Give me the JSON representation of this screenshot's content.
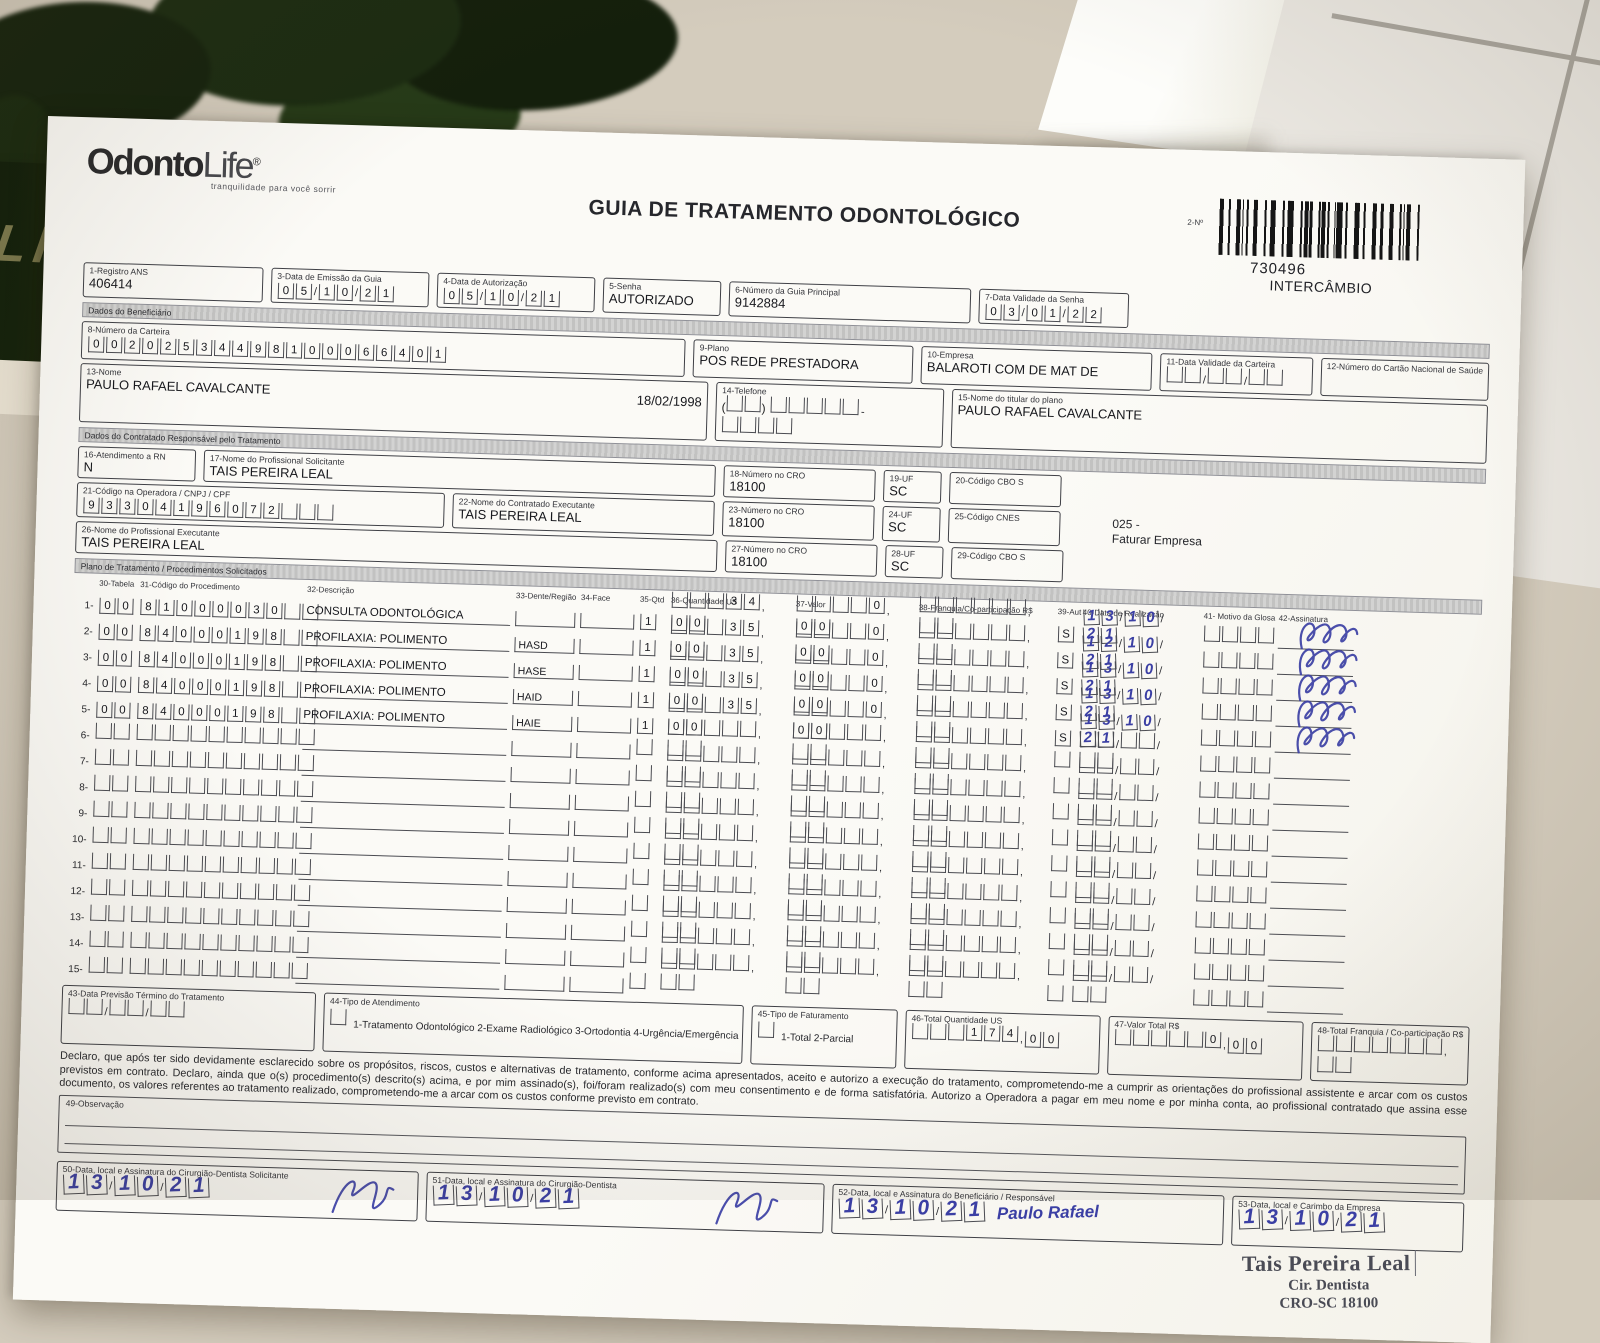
{
  "scene": {
    "life_text": "LIFE"
  },
  "header": {
    "brand_part1": "Odonto",
    "brand_part2": "Life",
    "brand_reg": "®",
    "tagline": "tranquilidade para você sorrir",
    "title": "GUIA DE TRATAMENTO ODONTOLÓGICO",
    "barcode_label": "2-Nº",
    "barcode_number": "730496",
    "barcode_type": "INTERCÂMBIO"
  },
  "top": {
    "registro": {
      "label": "1-Registro ANS",
      "value": "406414"
    },
    "emissao": {
      "label": "3-Data de Emissão da Guia",
      "value": [
        "05",
        "10",
        "21"
      ]
    },
    "autorizacao": {
      "label": "4-Data de Autorização",
      "value": [
        "05",
        "10",
        "21"
      ]
    },
    "senha": {
      "label": "5-Senha",
      "value": "AUTORIZADO"
    },
    "guia_principal": {
      "label": "6-Número da Guia Principal",
      "value": "9142884"
    },
    "validade_senha": {
      "label": "7-Data Validade da Senha",
      "value": [
        "03",
        "01",
        "22"
      ]
    }
  },
  "sections": {
    "beneficiario": "Dados do Beneficiário",
    "contratado": "Dados do Contratado Responsável pelo Tratamento",
    "plano_tratamento": "Plano de Tratamento / Procedimentos Solicitados"
  },
  "beneficiario": {
    "carteira": {
      "label": "8-Número da Carteira",
      "value": "00202534498100066401"
    },
    "plano": {
      "label": "9-Plano",
      "value": "POS REDE PRESTADORA"
    },
    "empresa": {
      "label": "10-Empresa",
      "value": "BALAROTI COM DE MAT DE"
    },
    "validade_carteira": {
      "label": "11-Data Validade da Carteira",
      "value": [
        "",
        "",
        ""
      ]
    },
    "cartao_saude": {
      "label": "12-Número do Cartão Nacional de Saúde",
      "value": ""
    },
    "nome": {
      "label": "13-Nome",
      "value": "PAULO RAFAEL CAVALCANTE",
      "data_nascimento": "18/02/1998"
    },
    "telefone": {
      "label": "14-Telefone",
      "ddd": "",
      "numero": [
        "",
        ""
      ]
    },
    "titular": {
      "label": "15-Nome do titular do plano",
      "value": "PAULO RAFAEL CAVALCANTE"
    }
  },
  "contratado": {
    "atendimento_rn": {
      "label": "16-Atendimento a RN",
      "value": "N"
    },
    "solicitante": {
      "label": "17-Nome do Profissional Solicitante",
      "value": "TAIS PEREIRA LEAL"
    },
    "cro_solicitante": {
      "label": "18-Número no CRO",
      "value": "18100"
    },
    "uf_solicitante": {
      "label": "19-UF",
      "value": "SC"
    },
    "cbo_solicitante": {
      "label": "20-Código CBO S",
      "value": ""
    },
    "codigo_operadora": {
      "label": "21-Código na Operadora / CNPJ / CPF",
      "value": "93304196072"
    },
    "contratado_executante": {
      "label": "22-Nome do Contratado Executante",
      "value": "TAIS PEREIRA LEAL"
    },
    "cro_executante": {
      "label": "23-Número no CRO",
      "value": "18100"
    },
    "uf_executante": {
      "label": "24-UF",
      "value": "SC"
    },
    "cnes": {
      "label": "25-Código CNES",
      "value": ""
    },
    "profissional_executante": {
      "label": "26-Nome do Profissional Executante",
      "value": "TAIS PEREIRA LEAL"
    },
    "cro_profissional": {
      "label": "27-Número no CRO",
      "value": "18100"
    },
    "uf_profissional": {
      "label": "28-UF",
      "value": "SC"
    },
    "cbo_profissional": {
      "label": "29-Código CBO S",
      "value": ""
    },
    "faturar_codigo": "025 -",
    "faturar_texto": "Faturar Empresa"
  },
  "table": {
    "headers": [
      "30-Tabela",
      "31-Código do Procedimento",
      "32-Descrição",
      "33-Dente/Região",
      "34-Face",
      "35-Qtd",
      "36-Quantidade US",
      "37-Valor",
      "38-Franquia/Co-participação R$",
      "39-Aut",
      "40-Data de Realização",
      "41- Motivo da Glosa",
      "42-Assinatura"
    ],
    "rows": [
      {
        "n": "1",
        "tabela": "00",
        "codigo": "81000030",
        "desc": "CONSULTA ODONTOLÓGICA",
        "dente": "",
        "qtd": "1",
        "us": "34",
        "us_dec": "00",
        "valor": "0",
        "valor_dec": "00",
        "aut": "S",
        "data": "13/10/21",
        "assinado": true
      },
      {
        "n": "2",
        "tabela": "00",
        "codigo": "84000198",
        "desc": "PROFILAXIA: POLIMENTO",
        "dente": "HASD",
        "qtd": "1",
        "us": "35",
        "us_dec": "00",
        "valor": "0",
        "valor_dec": "00",
        "aut": "S",
        "data": "12/10/21",
        "assinado": true
      },
      {
        "n": "3",
        "tabela": "00",
        "codigo": "84000198",
        "desc": "PROFILAXIA: POLIMENTO",
        "dente": "HASE",
        "qtd": "1",
        "us": "35",
        "us_dec": "00",
        "valor": "0",
        "valor_dec": "00",
        "aut": "S",
        "data": "13/10/21",
        "assinado": true
      },
      {
        "n": "4",
        "tabela": "00",
        "codigo": "84000198",
        "desc": "PROFILAXIA: POLIMENTO",
        "dente": "HAID",
        "qtd": "1",
        "us": "35",
        "us_dec": "00",
        "valor": "0",
        "valor_dec": "00",
        "aut": "S",
        "data": "13/10/21",
        "assinado": true
      },
      {
        "n": "5",
        "tabela": "00",
        "codigo": "84000198",
        "desc": "PROFILAXIA: POLIMENTO",
        "dente": "HAIE",
        "qtd": "1",
        "us": "35",
        "us_dec": "00",
        "valor": "0",
        "valor_dec": "00",
        "aut": "S",
        "data": "13/10/21",
        "assinado": true
      },
      {
        "n": "6"
      },
      {
        "n": "7"
      },
      {
        "n": "8"
      },
      {
        "n": "9"
      },
      {
        "n": "10"
      },
      {
        "n": "11"
      },
      {
        "n": "12"
      },
      {
        "n": "13"
      },
      {
        "n": "14"
      },
      {
        "n": "15"
      }
    ]
  },
  "rodape": {
    "termino": {
      "label": "43-Data Previsão Término do Tratamento",
      "value": [
        "",
        "",
        ""
      ]
    },
    "tipo_atendimento": {
      "label": "44-Tipo de Atendimento",
      "checkbox": "",
      "options": "1-Tratamento Odontológico  2-Exame Radiológico  3-Ortodontia  4-Urgência/Emergência"
    },
    "tipo_faturamento": {
      "label": "45-Tipo de Faturamento",
      "checkbox": "",
      "options": "1-Total  2-Parcial"
    },
    "total_us": {
      "label": "46-Total Quantidade US",
      "value": [
        "174",
        "00"
      ]
    },
    "valor_total": {
      "label": "47-Valor Total R$",
      "value": [
        "0",
        "00"
      ]
    },
    "total_franquia": {
      "label": "48-Total Franquia / Co-participação R$",
      "value": [
        "",
        ""
      ]
    }
  },
  "declaracao": "Declaro, que após ter sido devidamente esclarecido sobre os propósitos, riscos, custos e alternativas de tratamento, conforme acima apresentados, aceito e autorizo a execução do tratamento, comprometendo-me a cumprir as orientações do profissional assistente e arcar com os custos previstos em contrato. Declaro, ainda que o(s) procedimento(s) descrito(s) acima, e por mim assinado(s), foi/foram realizado(s) com meu consentimento e de forma satisfatória. Autorizo a Operadora a pagar em meu nome e por minha conta, ao profissional contratado que assina esse documento, os valores referentes ao tratamento realizado, comprometendo-me a arcar com os custos conforme previsto em contrato.",
  "observacao": {
    "label": "49-Observação"
  },
  "assinaturas": {
    "solicitante": {
      "label": "50-Data, local e Assinatura do Cirurgião-Dentista Solicitante",
      "date": [
        "13",
        "10",
        "21"
      ]
    },
    "dentista": {
      "label": "51-Data, local e Assinatura do Cirurgião-Dentista",
      "date": [
        "13",
        "10",
        "21"
      ]
    },
    "beneficiario": {
      "label": "52-Data, local e Assinatura do Beneficiário / Responsável",
      "date": [
        "13",
        "10",
        "21"
      ],
      "nome": "Paulo Rafael"
    },
    "empresa": {
      "label": "53-Data, local e Carimbo da Empresa",
      "date": [
        "13",
        "10",
        "21"
      ]
    }
  },
  "carimbo": {
    "linha1": "Tais Pereira Leal",
    "linha2": "Cir. Dentista",
    "linha3": "CRO-SC 18100"
  }
}
